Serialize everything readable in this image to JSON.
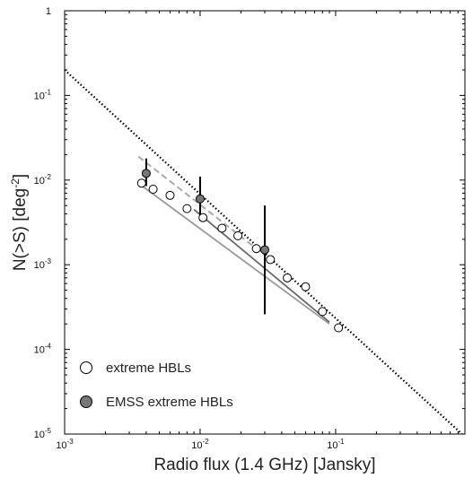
{
  "chart_data": {
    "type": "scatter",
    "xlabel": "Radio flux (1.4 GHz) [Jansky]",
    "ylabel": "N(>S) [deg⁻²]",
    "xscale": "log",
    "yscale": "log",
    "xlim": [
      0.001,
      0.9
    ],
    "ylim": [
      1e-05,
      1
    ],
    "x_ticks": [
      {
        "value": 0.001,
        "base": "10",
        "exp": "-3"
      },
      {
        "value": 0.01,
        "base": "10",
        "exp": "-2"
      },
      {
        "value": 0.1,
        "base": "10",
        "exp": "-1"
      }
    ],
    "y_ticks": [
      {
        "value": 1,
        "base": "1",
        "exp": ""
      },
      {
        "value": 0.1,
        "base": "10",
        "exp": "-1"
      },
      {
        "value": 0.01,
        "base": "10",
        "exp": "-2"
      },
      {
        "value": 0.001,
        "base": "10",
        "exp": "-3"
      },
      {
        "value": 0.0001,
        "base": "10",
        "exp": "-4"
      },
      {
        "value": 1e-05,
        "base": "10",
        "exp": "-5"
      }
    ],
    "legend": {
      "placement": "bottom-left",
      "entries": [
        {
          "label": "extreme HBLs",
          "marker": "open-circle"
        },
        {
          "label": "EMSS extreme HBLs",
          "marker": "filled-circle"
        }
      ]
    },
    "series": [
      {
        "name": "extreme HBLs",
        "marker": "open-circle",
        "x": [
          0.0037,
          0.0045,
          0.006,
          0.008,
          0.0105,
          0.0145,
          0.019,
          0.026,
          0.033,
          0.044,
          0.06,
          0.08,
          0.105
        ],
        "y": [
          0.0092,
          0.0078,
          0.0066,
          0.0046,
          0.0036,
          0.0027,
          0.0022,
          0.00155,
          0.00115,
          0.0007,
          0.00055,
          0.00028,
          0.00018
        ]
      },
      {
        "name": "EMSS extreme HBLs",
        "marker": "filled-circle",
        "x": [
          0.004,
          0.01,
          0.03
        ],
        "y": [
          0.012,
          0.006,
          0.0015
        ],
        "y_err_low": [
          0.0085,
          0.0033,
          0.00026
        ],
        "y_err_high": [
          0.018,
          0.011,
          0.005
        ]
      }
    ],
    "lines": [
      {
        "style": "dotted",
        "color": "#000000",
        "x": [
          0.001,
          0.9
        ],
        "y": [
          0.2,
          9.3e-06
        ]
      },
      {
        "style": "dashed",
        "color": "#aaaaaa",
        "x": [
          0.0035,
          0.03
        ],
        "y": [
          0.019,
          0.0013
        ]
      },
      {
        "style": "solid",
        "color": "#999999",
        "x": [
          0.0035,
          0.09
        ],
        "y": [
          0.0092,
          0.0002
        ]
      },
      {
        "style": "solid",
        "color": "#666666",
        "x": [
          0.009,
          0.09
        ],
        "y": [
          0.0045,
          0.00021
        ]
      }
    ]
  }
}
